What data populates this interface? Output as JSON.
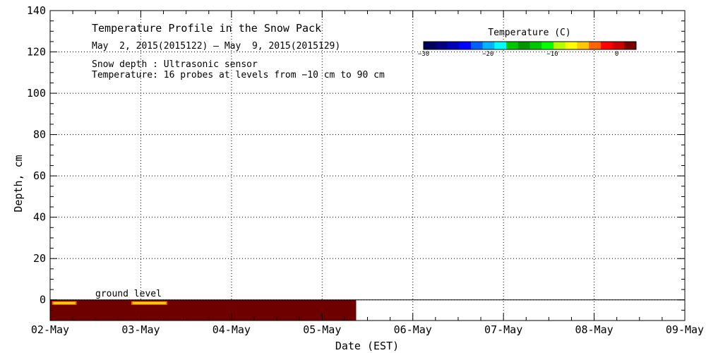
{
  "chart_data": {
    "type": "heatmap",
    "title": "Temperature Profile in the Snow Pack",
    "subtitle": "May  2, 2015(2015122) – May  9, 2015(2015129)",
    "notes": [
      "Snow depth : Ultrasonic sensor",
      "Temperature: 16 probes at levels from −10 cm to 90 cm"
    ],
    "xlabel": "Date (EST)",
    "ylabel": "Depth, cm",
    "x_ticks": [
      "02-May",
      "03-May",
      "04-May",
      "05-May",
      "06-May",
      "07-May",
      "08-May",
      "09-May"
    ],
    "x_range": [
      "2015-05-02",
      "2015-05-09"
    ],
    "y_ticks": [
      0,
      20,
      40,
      60,
      80,
      100,
      120,
      140
    ],
    "ylim": [
      -10,
      140
    ],
    "grid": true,
    "annotation": "ground level",
    "colorbar": {
      "title": "Temperature (C)",
      "ticks": [
        -30,
        -20,
        -10,
        0
      ],
      "range": [
        -30,
        3
      ],
      "colors": [
        "#00005a",
        "#000080",
        "#0000b4",
        "#0000ff",
        "#0060ff",
        "#00b4ff",
        "#00ffff",
        "#00c800",
        "#009600",
        "#00c800",
        "#00ff00",
        "#b4ff00",
        "#ffff00",
        "#ffc800",
        "#ff6400",
        "#ff0000",
        "#c80000",
        "#780000"
      ],
      "legend_position": "top-right"
    },
    "heatmap_region": {
      "x_start": "2015-05-02",
      "x_end": "2015-05-05 09:00",
      "depth_top": 0,
      "depth_bottom": -10,
      "base_color": "#6e0000",
      "warm_spots": [
        {
          "x_start": "2015-05-02 00:30",
          "x_end": "2015-05-02 07:00",
          "color": "#ffd200"
        },
        {
          "x_start": "2015-05-02 21:30",
          "x_end": "2015-05-03 07:00",
          "color": "#ffd200"
        }
      ]
    }
  }
}
